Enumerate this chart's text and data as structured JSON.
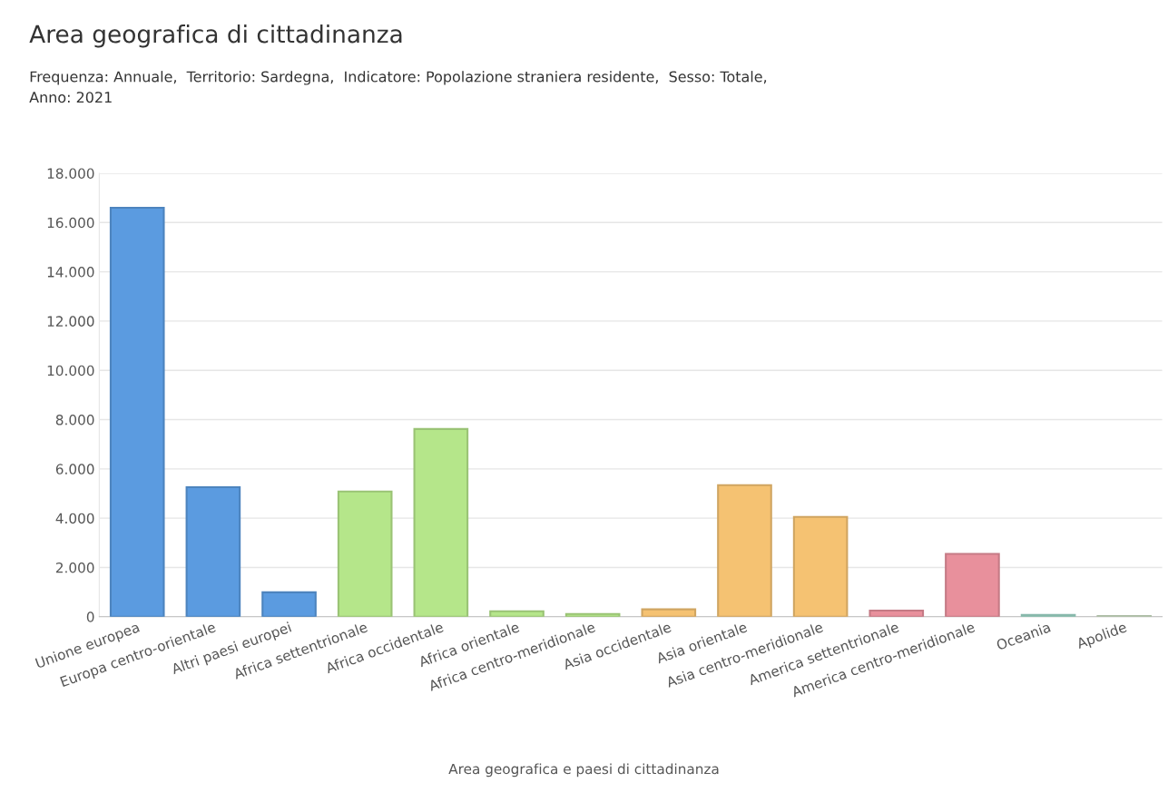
{
  "chart_data": {
    "type": "bar",
    "title": "Area geografica di cittadinanza",
    "subtitle": "Frequenza: Annuale,  Territorio: Sardegna,  Indicatore: Popolazione straniera residente,  Sesso: Totale,\nAnno: 2021",
    "xlabel": "Area geografica e paesi di cittadinanza",
    "categories": [
      "Unione europea",
      "Europa centro-orientale",
      "Altri paesi europei",
      "Africa settentrionale",
      "Africa occidentale",
      "Africa orientale",
      "Africa centro-meridionale",
      "Asia occidentale",
      "Asia orientale",
      "Asia centro-meridionale",
      "America settentrionale",
      "America centro-meridionale",
      "Oceania",
      "Apolide"
    ],
    "values": [
      16600,
      5260,
      990,
      5080,
      7620,
      220,
      110,
      300,
      5340,
      4050,
      250,
      2550,
      70,
      30
    ],
    "colors": [
      "#5b9be0",
      "#5b9be0",
      "#5b9be0",
      "#b5e68a",
      "#b5e68a",
      "#b5e68a",
      "#b5e68a",
      "#f5c272",
      "#f5c272",
      "#f5c272",
      "#e8909c",
      "#e8909c",
      "#9fd9c9",
      "#c9dcc0"
    ],
    "ylim": [
      0,
      18000
    ],
    "yticks": [
      {
        "value": 0,
        "label": "0"
      },
      {
        "value": 2000,
        "label": "2.000"
      },
      {
        "value": 4000,
        "label": "4.000"
      },
      {
        "value": 6000,
        "label": "6.000"
      },
      {
        "value": 8000,
        "label": "8.000"
      },
      {
        "value": 10000,
        "label": "10.000"
      },
      {
        "value": 12000,
        "label": "12.000"
      },
      {
        "value": 14000,
        "label": "14.000"
      },
      {
        "value": 16000,
        "label": "16.000"
      },
      {
        "value": 18000,
        "label": "18.000"
      }
    ],
    "grid": "y"
  }
}
